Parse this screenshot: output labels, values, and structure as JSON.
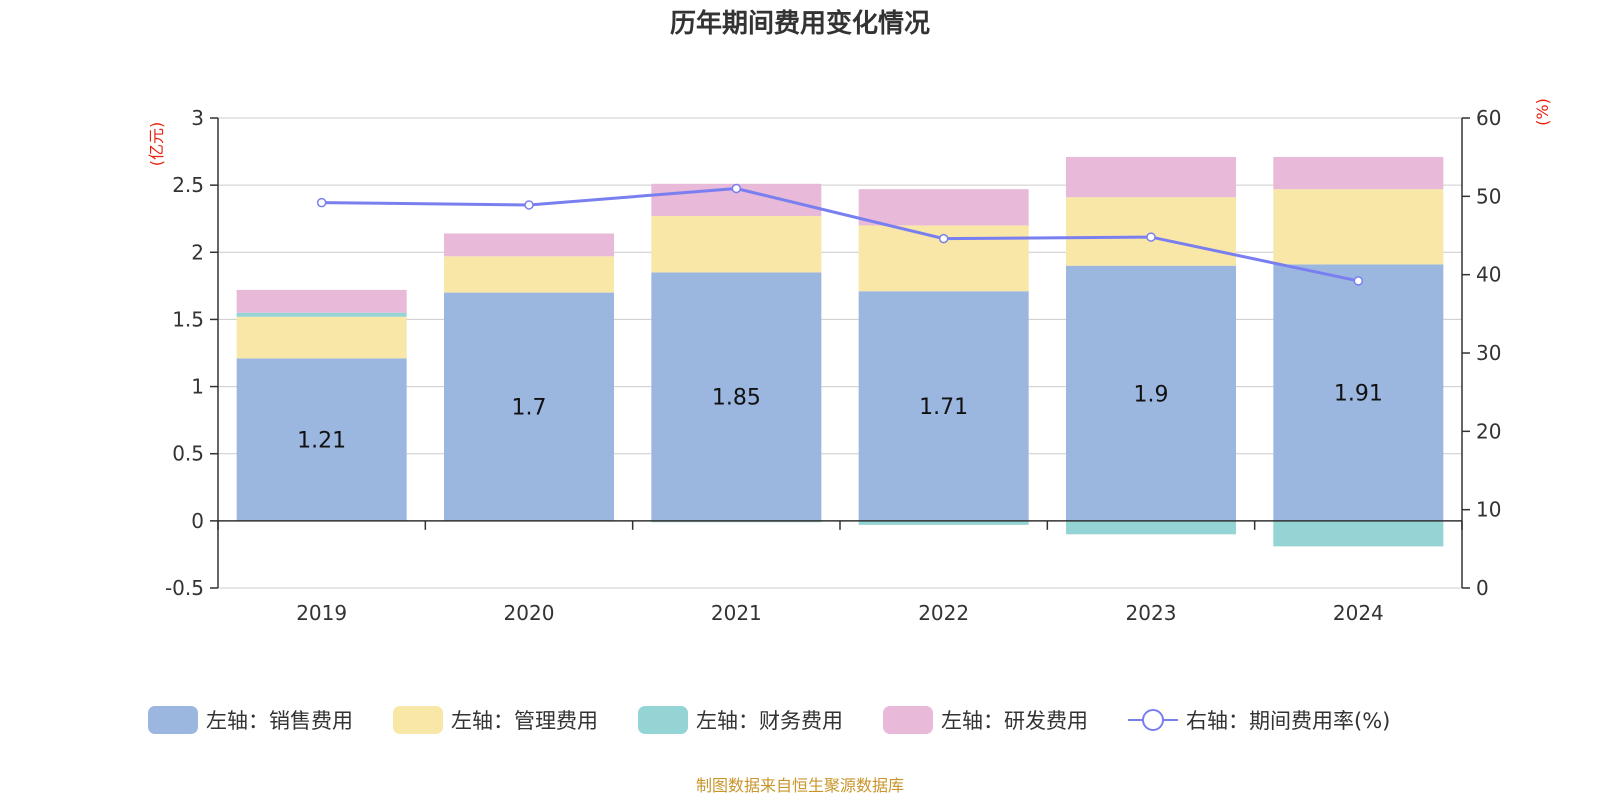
{
  "chart_data": {
    "type": "bar",
    "stacked": true,
    "title": "历年期间费用变化情况",
    "categories": [
      "2019",
      "2020",
      "2021",
      "2022",
      "2023",
      "2024"
    ],
    "left_axis": {
      "unit": "(亿元)",
      "ylim": [
        -0.5,
        3
      ],
      "ticks": [
        "3",
        "2.5",
        "2",
        "1.5",
        "1",
        "0.5",
        "0",
        "-0.5"
      ],
      "tick_values": [
        3,
        2.5,
        2,
        1.5,
        1,
        0.5,
        0,
        -0.5
      ]
    },
    "right_axis": {
      "unit": "(%)",
      "ylim": [
        0,
        60
      ],
      "ticks": [
        "60",
        "50",
        "40",
        "30",
        "20",
        "10",
        "0"
      ],
      "tick_values": [
        60,
        50,
        40,
        30,
        20,
        10,
        0
      ]
    },
    "series": [
      {
        "name": "左轴：销售费用",
        "axis": "left",
        "kind": "bar",
        "color": "#9bb7e0",
        "values": [
          1.21,
          1.7,
          1.85,
          1.71,
          1.9,
          1.91
        ],
        "labels": [
          "1.21",
          "1.7",
          "1.85",
          "1.71",
          "1.9",
          "1.91"
        ]
      },
      {
        "name": "左轴：管理费用",
        "axis": "left",
        "kind": "bar",
        "color": "#f8e7a7",
        "values": [
          0.31,
          0.27,
          0.42,
          0.49,
          0.51,
          0.56
        ]
      },
      {
        "name": "左轴：财务费用",
        "axis": "left",
        "kind": "bar",
        "color": "#95d4d4",
        "values": [
          0.03,
          0.0,
          -0.01,
          -0.03,
          -0.1,
          -0.19
        ]
      },
      {
        "name": "左轴：研发费用",
        "axis": "left",
        "kind": "bar",
        "color": "#e8b9d8",
        "values": [
          0.17,
          0.17,
          0.24,
          0.27,
          0.3,
          0.24
        ]
      },
      {
        "name": "右轴：期间费用率(%)",
        "axis": "right",
        "kind": "line",
        "color": "#7a7ff0",
        "values": [
          49.2,
          48.9,
          51.0,
          44.6,
          44.8,
          39.2
        ]
      }
    ],
    "legend_position": "bottom",
    "source": "制图数据来自恒生聚源数据库"
  }
}
